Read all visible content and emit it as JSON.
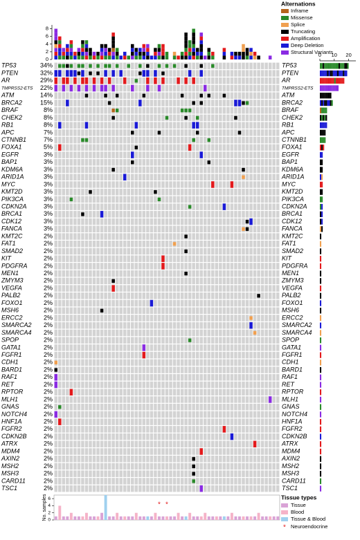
{
  "chart_data": {
    "type": "oncoprint",
    "alteration_title": "Alternations",
    "alteration_types": [
      {
        "name": "Inframe",
        "color": "#b5651d"
      },
      {
        "name": "Missense",
        "color": "#2a8a2a"
      },
      {
        "name": "Splice",
        "color": "#f0a050"
      },
      {
        "name": "Truncating",
        "color": "#000000"
      },
      {
        "name": "Amplification",
        "color": "#e31a1c"
      },
      {
        "name": "Deep Deletion",
        "color": "#1a1ad6"
      },
      {
        "name": "Structural Variants",
        "color": "#8a2be2"
      }
    ],
    "top_ylim": [
      0,
      9
    ],
    "top_yticks": [
      0,
      2,
      4,
      6,
      8
    ],
    "right_xlim": [
      0,
      25
    ],
    "right_xticks": [
      0,
      10,
      20
    ],
    "genes": [
      {
        "name": "TP53",
        "pct": 34,
        "pct_label": "34%",
        "cells": [
          [
            1,
            1
          ],
          [
            2,
            1
          ],
          [
            3,
            3
          ],
          [
            4,
            1
          ],
          [
            6,
            1
          ],
          [
            7,
            1
          ],
          [
            9,
            1
          ],
          [
            11,
            1
          ],
          [
            13,
            1
          ],
          [
            14,
            1
          ],
          [
            16,
            1
          ],
          [
            19,
            1
          ],
          [
            22,
            1
          ],
          [
            24,
            3
          ],
          [
            27,
            1
          ],
          [
            29,
            1
          ],
          [
            31,
            1
          ],
          [
            34,
            3
          ],
          [
            38,
            3
          ],
          [
            41,
            1
          ]
        ]
      },
      {
        "name": "PTEN",
        "pct": 32,
        "pct_label": "32%",
        "cells": [
          [
            0,
            5
          ],
          [
            1,
            5
          ],
          [
            3,
            5
          ],
          [
            4,
            5
          ],
          [
            5,
            5
          ],
          [
            6,
            3
          ],
          [
            7,
            5
          ],
          [
            9,
            3
          ],
          [
            11,
            3
          ],
          [
            13,
            5
          ],
          [
            15,
            5
          ],
          [
            17,
            5
          ],
          [
            22,
            3
          ],
          [
            23,
            5
          ],
          [
            24,
            5
          ],
          [
            26,
            5
          ],
          [
            28,
            3
          ],
          [
            35,
            5
          ],
          [
            38,
            5
          ]
        ]
      },
      {
        "name": "AR",
        "pct": 29,
        "pct_label": "29%",
        "cells": [
          [
            0,
            4
          ],
          [
            2,
            4
          ],
          [
            3,
            4
          ],
          [
            5,
            4
          ],
          [
            7,
            4
          ],
          [
            8,
            4
          ],
          [
            10,
            4
          ],
          [
            12,
            4
          ],
          [
            14,
            4
          ],
          [
            18,
            4
          ],
          [
            21,
            1
          ],
          [
            24,
            4
          ],
          [
            26,
            4
          ],
          [
            28,
            4
          ],
          [
            32,
            4
          ],
          [
            34,
            4
          ],
          [
            36,
            4
          ]
        ]
      },
      {
        "name": "TMPRSS2-ETS",
        "pct": 22,
        "pct_label": "22%",
        "cells": [
          [
            0,
            6
          ],
          [
            2,
            6
          ],
          [
            4,
            6
          ],
          [
            6,
            6
          ],
          [
            8,
            6
          ],
          [
            10,
            6
          ],
          [
            12,
            6
          ],
          [
            13,
            6
          ],
          [
            15,
            6
          ],
          [
            20,
            6
          ],
          [
            24,
            6
          ],
          [
            27,
            6
          ],
          [
            39,
            6
          ]
        ]
      },
      {
        "name": "ATM",
        "pct": 14,
        "pct_label": "14%",
        "cells": [
          [
            8,
            3
          ],
          [
            13,
            3
          ],
          [
            16,
            3
          ],
          [
            23,
            3
          ],
          [
            33,
            3
          ],
          [
            38,
            3
          ],
          [
            40,
            3
          ],
          [
            44,
            3
          ]
        ]
      },
      {
        "name": "BRCA2",
        "pct": 15,
        "pct_label": "15%",
        "cells": [
          [
            3,
            5
          ],
          [
            14,
            3
          ],
          [
            22,
            5
          ],
          [
            36,
            3
          ],
          [
            38,
            3
          ],
          [
            47,
            5
          ],
          [
            48,
            5
          ],
          [
            49,
            3
          ],
          [
            50,
            1
          ]
        ]
      },
      {
        "name": "BRAF",
        "pct": 8,
        "pct_label": "8%",
        "cells": [
          [
            15,
            0
          ],
          [
            16,
            1
          ],
          [
            33,
            1
          ],
          [
            34,
            1
          ],
          [
            35,
            1
          ]
        ]
      },
      {
        "name": "CHEK2",
        "pct": 8,
        "pct_label": "8%",
        "cells": [
          [
            15,
            3
          ],
          [
            29,
            1
          ],
          [
            34,
            3
          ],
          [
            37,
            1
          ],
          [
            47,
            3
          ]
        ]
      },
      {
        "name": "RB1",
        "pct": 8,
        "pct_label": "8%",
        "cells": [
          [
            1,
            5
          ],
          [
            8,
            5
          ],
          [
            21,
            5
          ],
          [
            36,
            5
          ],
          [
            37,
            5
          ]
        ]
      },
      {
        "name": "APC",
        "pct": 7,
        "pct_label": "7%",
        "cells": [
          [
            20,
            3
          ],
          [
            27,
            3
          ],
          [
            37,
            3
          ],
          [
            48,
            3
          ]
        ]
      },
      {
        "name": "CTNNB1",
        "pct": 7,
        "pct_label": "7%",
        "cells": [
          [
            7,
            1
          ],
          [
            8,
            1
          ],
          [
            36,
            1
          ],
          [
            40,
            1
          ]
        ]
      },
      {
        "name": "FOXA1",
        "pct": 5,
        "pct_label": "5%",
        "cells": [
          [
            1,
            4
          ],
          [
            21,
            3
          ],
          [
            35,
            4
          ]
        ]
      },
      {
        "name": "EGFR",
        "pct": 3,
        "pct_label": "3%",
        "cells": [
          [
            20,
            5
          ],
          [
            38,
            5
          ]
        ]
      },
      {
        "name": "BAP1",
        "pct": 3,
        "pct_label": "3%",
        "cells": [
          [
            20,
            3
          ],
          [
            40,
            3
          ]
        ]
      },
      {
        "name": "KDM6A",
        "pct": 3,
        "pct_label": "3%",
        "cells": [
          [
            15,
            3
          ],
          [
            49,
            3
          ]
        ]
      },
      {
        "name": "ARID1A",
        "pct": 3,
        "pct_label": "3%",
        "cells": [
          [
            18,
            5
          ],
          [
            49,
            2
          ]
        ]
      },
      {
        "name": "MYC",
        "pct": 3,
        "pct_label": "3%",
        "cells": [
          [
            41,
            4
          ],
          [
            46,
            4
          ]
        ]
      },
      {
        "name": "KMT2D",
        "pct": 3,
        "pct_label": "3%",
        "cells": [
          [
            9,
            3
          ],
          [
            26,
            3
          ]
        ]
      },
      {
        "name": "PIK3CA",
        "pct": 3,
        "pct_label": "3%",
        "cells": [
          [
            4,
            1
          ],
          [
            27,
            1
          ]
        ]
      },
      {
        "name": "CDKN2A",
        "pct": 3,
        "pct_label": "3%",
        "cells": [
          [
            35,
            1
          ],
          [
            44,
            5
          ]
        ]
      },
      {
        "name": "BRCA1",
        "pct": 3,
        "pct_label": "3%",
        "cells": [
          [
            7,
            3
          ],
          [
            12,
            5
          ]
        ]
      },
      {
        "name": "CDK12",
        "pct": 3,
        "pct_label": "3%",
        "cells": [
          [
            50,
            3
          ],
          [
            51,
            5
          ]
        ]
      },
      {
        "name": "FANCA",
        "pct": 3,
        "pct_label": "3%",
        "cells": [
          [
            49,
            2
          ],
          [
            50,
            3
          ]
        ]
      },
      {
        "name": "KMT2C",
        "pct": 2,
        "pct_label": "2%",
        "cells": [
          [
            34,
            3
          ]
        ]
      },
      {
        "name": "FAT1",
        "pct": 2,
        "pct_label": "2%",
        "cells": [
          [
            31,
            2
          ]
        ]
      },
      {
        "name": "SMAD2",
        "pct": 2,
        "pct_label": "2%",
        "cells": [
          [
            34,
            3
          ]
        ]
      },
      {
        "name": "KIT",
        "pct": 2,
        "pct_label": "2%",
        "cells": [
          [
            28,
            4
          ]
        ]
      },
      {
        "name": "PDGFRA",
        "pct": 2,
        "pct_label": "2%",
        "cells": [
          [
            28,
            4
          ]
        ]
      },
      {
        "name": "MEN1",
        "pct": 2,
        "pct_label": "2%",
        "cells": [
          [
            34,
            3
          ]
        ]
      },
      {
        "name": "ZMYM3",
        "pct": 2,
        "pct_label": "2%",
        "cells": [
          [
            15,
            3
          ]
        ]
      },
      {
        "name": "VEGFA",
        "pct": 2,
        "pct_label": "2%",
        "cells": [
          [
            15,
            4
          ]
        ]
      },
      {
        "name": "PALB2",
        "pct": 2,
        "pct_label": "2%",
        "cells": [
          [
            53,
            3
          ]
        ]
      },
      {
        "name": "FOXO1",
        "pct": 2,
        "pct_label": "2%",
        "cells": [
          [
            25,
            5
          ]
        ]
      },
      {
        "name": "MSH6",
        "pct": 2,
        "pct_label": "2%",
        "cells": [
          [
            12,
            3
          ]
        ]
      },
      {
        "name": "ERCC2",
        "pct": 2,
        "pct_label": "2%",
        "cells": [
          [
            51,
            2
          ]
        ]
      },
      {
        "name": "SMARCA2",
        "pct": 2,
        "pct_label": "2%",
        "cells": [
          [
            51,
            5
          ]
        ]
      },
      {
        "name": "SMARCA4",
        "pct": 2,
        "pct_label": "2%",
        "cells": [
          [
            52,
            2
          ]
        ]
      },
      {
        "name": "SPOP",
        "pct": 2,
        "pct_label": "2%",
        "cells": [
          [
            35,
            1
          ]
        ]
      },
      {
        "name": "GATA1",
        "pct": 2,
        "pct_label": "2%",
        "cells": [
          [
            23,
            6
          ]
        ]
      },
      {
        "name": "FGFR1",
        "pct": 2,
        "pct_label": "2%",
        "cells": [
          [
            23,
            4
          ]
        ]
      },
      {
        "name": "CDH1",
        "pct": 2,
        "pct_label": "2%",
        "cells": [
          [
            0,
            2
          ]
        ]
      },
      {
        "name": "BARD1",
        "pct": 2,
        "pct_label": "2%",
        "cells": [
          [
            0,
            3
          ]
        ]
      },
      {
        "name": "RAF1",
        "pct": 2,
        "pct_label": "2%",
        "cells": [
          [
            0,
            6
          ]
        ]
      },
      {
        "name": "RET",
        "pct": 2,
        "pct_label": "2%",
        "cells": [
          [
            0,
            6
          ]
        ]
      },
      {
        "name": "RPTOR",
        "pct": 2,
        "pct_label": "2%",
        "cells": [
          [
            4,
            4
          ]
        ]
      },
      {
        "name": "MLH1",
        "pct": 2,
        "pct_label": "2%",
        "cells": [
          [
            56,
            6
          ]
        ]
      },
      {
        "name": "GNAS",
        "pct": 2,
        "pct_label": "2%",
        "cells": [
          [
            1,
            1
          ]
        ]
      },
      {
        "name": "NOTCH4",
        "pct": 2,
        "pct_label": "2%",
        "cells": [
          [
            0,
            6
          ]
        ]
      },
      {
        "name": "HNF1A",
        "pct": 2,
        "pct_label": "2%",
        "cells": [
          [
            1,
            4
          ]
        ]
      },
      {
        "name": "FGFR2",
        "pct": 2,
        "pct_label": "2%",
        "cells": [
          [
            44,
            4
          ]
        ]
      },
      {
        "name": "CDKN2B",
        "pct": 2,
        "pct_label": "2%",
        "cells": [
          [
            46,
            5
          ]
        ]
      },
      {
        "name": "ATRX",
        "pct": 2,
        "pct_label": "2%",
        "cells": [
          [
            52,
            4
          ]
        ]
      },
      {
        "name": "MDM4",
        "pct": 2,
        "pct_label": "2%",
        "cells": [
          [
            38,
            4
          ]
        ]
      },
      {
        "name": "AXIN2",
        "pct": 2,
        "pct_label": "2%",
        "cells": [
          [
            36,
            3
          ]
        ]
      },
      {
        "name": "MSH2",
        "pct": 2,
        "pct_label": "2%",
        "cells": [
          [
            36,
            3
          ]
        ]
      },
      {
        "name": "MSH3",
        "pct": 2,
        "pct_label": "2%",
        "cells": [
          [
            36,
            3
          ]
        ]
      },
      {
        "name": "CARD11",
        "pct": 2,
        "pct_label": "2%",
        "cells": [
          [
            36,
            1
          ]
        ]
      },
      {
        "name": "TSC1",
        "pct": 2,
        "pct_label": "2%",
        "cells": [
          [
            38,
            6
          ]
        ]
      }
    ],
    "samples": {
      "labels": [
        null,
        null,
        null,
        null,
        null,
        null,
        null,
        null,
        null,
        null,
        null,
        null,
        null,
        null,
        null,
        null,
        null,
        null,
        null,
        null,
        null,
        null,
        null,
        null,
        null,
        null,
        null,
        null,
        null,
        null,
        null,
        null,
        null,
        null,
        null,
        null,
        null,
        null,
        null,
        null,
        null,
        null,
        null,
        null,
        null,
        null,
        null,
        null,
        null,
        null,
        null,
        null,
        null,
        null,
        null,
        null,
        null,
        null,
        null
      ],
      "n": [
        1,
        4,
        1,
        1,
        2,
        1,
        1,
        1,
        2,
        1,
        1,
        1,
        2,
        7,
        1,
        1,
        2,
        1,
        1,
        1,
        1,
        2,
        1,
        1,
        1,
        1,
        2,
        1,
        1,
        1,
        1,
        1,
        2,
        1,
        1,
        2,
        1,
        1,
        1,
        2,
        1,
        1,
        1,
        1,
        1,
        1,
        2,
        1,
        1,
        1,
        1,
        1,
        1,
        2,
        1,
        1,
        1,
        1,
        1
      ],
      "tissue": [
        0,
        1,
        0,
        0,
        1,
        0,
        0,
        1,
        1,
        0,
        0,
        1,
        0,
        2,
        0,
        0,
        1,
        0,
        1,
        0,
        0,
        1,
        0,
        0,
        2,
        0,
        1,
        0,
        0,
        1,
        0,
        0,
        1,
        0,
        2,
        1,
        0,
        0,
        1,
        1,
        0,
        0,
        1,
        0,
        2,
        0,
        1,
        0,
        0,
        1,
        0,
        1,
        0,
        1,
        0,
        0,
        1,
        0,
        0
      ]
    },
    "bottom_ylabel": "No. samples",
    "bottom_ylim": [
      0,
      7
    ],
    "bottom_yticks": [
      0,
      2,
      4,
      6
    ],
    "tissue_title": "Tissue types",
    "tissue_types": [
      {
        "name": "Tissue",
        "color": "#d9a3d6"
      },
      {
        "name": "Blood",
        "color": "#f5b3c8"
      },
      {
        "name": "Tissue & Blood",
        "color": "#9fd0ef"
      }
    ],
    "neuroendocrine_name": "Neuroendocrine",
    "neuroendocrine_mark": "*",
    "neuroendocrine_color": "#e31a1c",
    "neuroendocrine_samples": [
      27,
      29
    ]
  }
}
